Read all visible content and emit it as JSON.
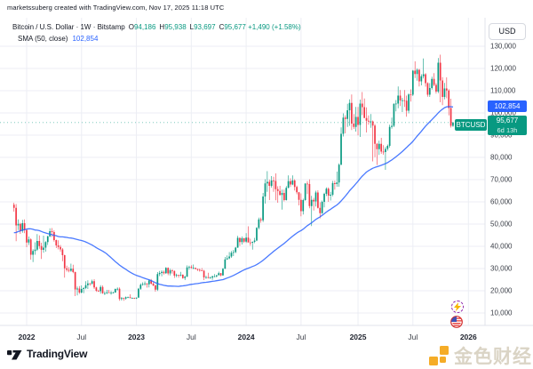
{
  "attribution": "marketssuberg created with TradingView.com, Nov 17, 2025 11:18 UTC",
  "legend": {
    "symbol_line": "Bitcoin / U.S. Dollar · 1W · Bitstamp",
    "o_label": "O",
    "o": "94,186",
    "h_label": "H",
    "h": "95,938",
    "l_label": "L",
    "l": "93,697",
    "c_label": "C",
    "c": "95,677",
    "change": "+1,490 (+1.58%)",
    "sma_label": "SMA (50, close)",
    "sma_value": "102,854"
  },
  "badges": {
    "currency": "USD",
    "sma": "102,854",
    "price": "95,677",
    "countdown": "6d 13h",
    "symbol": "BTCUSD"
  },
  "footer": {
    "brand": "TradingView",
    "watermark_text": "金色财经"
  },
  "colors": {
    "up": "#089981",
    "down": "#F23645",
    "sma_line": "#2962FF",
    "grid": "#eceef4",
    "axis_border": "#e0e3eb",
    "axis_text": "#3a3e47",
    "year_text": "#1e222d",
    "price_line": "#089981",
    "watermark_orange": "#f5a81c"
  },
  "chart_data": {
    "type": "candlestick",
    "symbol": "BTCUSD",
    "exchange": "Bitstamp",
    "interval": "1W",
    "units": "USD thousands",
    "last_price": 95.677,
    "change": 1.49,
    "change_pct": 1.58,
    "sma_period": 50,
    "sma_last": 102.854,
    "ylim": [
      5,
      135
    ],
    "price_ticks": [
      {
        "label": "130,000",
        "value": 130
      },
      {
        "label": "120,000",
        "value": 120
      },
      {
        "label": "110,000",
        "value": 110
      },
      {
        "label": "100,000",
        "value": 100
      },
      {
        "label": "90,000",
        "value": 90
      },
      {
        "label": "80,000",
        "value": 80
      },
      {
        "label": "70,000",
        "value": 70
      },
      {
        "label": "60,000",
        "value": 60
      },
      {
        "label": "50,000",
        "value": 50
      },
      {
        "label": "40,000",
        "value": 40
      },
      {
        "label": "30,000",
        "value": 30
      },
      {
        "label": "20,000",
        "value": 20
      },
      {
        "label": "10,000",
        "value": 10
      }
    ],
    "time_ticks": [
      {
        "label": "2022",
        "week": 6,
        "year": true
      },
      {
        "label": "Jul",
        "week": 32,
        "year": false
      },
      {
        "label": "2023",
        "week": 58,
        "year": true
      },
      {
        "label": "Jul",
        "week": 84,
        "year": false
      },
      {
        "label": "2024",
        "week": 110,
        "year": true
      },
      {
        "label": "Jul",
        "week": 136,
        "year": false
      },
      {
        "label": "2025",
        "week": 163,
        "year": true
      },
      {
        "label": "Jul",
        "week": 189,
        "year": false
      },
      {
        "label": "2026",
        "week": 215.3,
        "year": true
      }
    ],
    "sma_seed_closes": [
      26.9,
      33.0,
      32.0,
      35.9,
      32.1,
      34.3,
      38.9,
      47.2,
      55.9,
      45.2,
      50.9,
      57.1,
      58.1,
      55.8,
      58.7,
      59.0,
      60.0,
      56.2,
      49.1,
      58.9,
      46.7,
      34.7,
      35.7,
      35.5,
      39.0,
      35.5,
      35.6,
      34.7,
      33.5,
      31.5,
      30.8,
      34.3,
      39.9,
      45.6,
      47.1,
      49.0,
      48.9,
      51.8,
      46.1,
      48.3,
      43.2,
      47.7,
      54.7,
      61.3,
      60.9,
      61.5,
      65.5,
      58.7
    ],
    "candles": [
      [
        58.7,
        59.6,
        55.6,
        57.3
      ],
      [
        57.3,
        59.0,
        42.3,
        49.4
      ],
      [
        49.4,
        52.1,
        47.3,
        50.1
      ],
      [
        50.1,
        50.6,
        45.6,
        46.9
      ],
      [
        46.9,
        51.9,
        46.1,
        50.4
      ],
      [
        50.4,
        52.1,
        45.9,
        47.3
      ],
      [
        47.3,
        47.8,
        39.6,
        41.7
      ],
      [
        41.7,
        44.4,
        40.6,
        43.1
      ],
      [
        43.1,
        43.6,
        34.0,
        36.2
      ],
      [
        36.2,
        38.7,
        32.9,
        37.9
      ],
      [
        37.9,
        41.8,
        36.2,
        38.5
      ],
      [
        38.5,
        45.5,
        37.9,
        42.4
      ],
      [
        42.4,
        44.9,
        38.9,
        40.1
      ],
      [
        40.1,
        41.6,
        34.3,
        38.4
      ],
      [
        38.4,
        44.8,
        37.1,
        39.4
      ],
      [
        39.4,
        42.3,
        37.6,
        41.9
      ],
      [
        41.9,
        44.7,
        40.6,
        44.5
      ],
      [
        44.5,
        48.1,
        44.1,
        46.8
      ],
      [
        46.8,
        48.2,
        44.2,
        46.4
      ],
      [
        46.4,
        47.2,
        42.1,
        42.8
      ],
      [
        42.8,
        43.0,
        39.2,
        40.4
      ],
      [
        40.4,
        42.7,
        38.6,
        39.7
      ],
      [
        39.7,
        40.6,
        37.6,
        38.6
      ],
      [
        38.6,
        39.2,
        33.3,
        36.0
      ],
      [
        36.0,
        36.2,
        25.9,
        30.1
      ],
      [
        30.1,
        31.3,
        28.6,
        29.4
      ],
      [
        29.4,
        30.6,
        28.3,
        29.0
      ],
      [
        29.0,
        32.2,
        28.5,
        29.9
      ],
      [
        29.9,
        31.7,
        27.9,
        28.4
      ],
      [
        28.4,
        28.6,
        17.6,
        20.6
      ],
      [
        20.6,
        21.9,
        17.9,
        21.0
      ],
      [
        21.0,
        22.1,
        18.6,
        19.2
      ],
      [
        19.2,
        22.4,
        18.8,
        20.8
      ],
      [
        20.8,
        21.6,
        18.9,
        21.2
      ],
      [
        21.2,
        24.3,
        20.7,
        22.5
      ],
      [
        22.5,
        24.7,
        20.8,
        23.3
      ],
      [
        23.3,
        23.5,
        22.3,
        23.2
      ],
      [
        23.2,
        25.0,
        22.7,
        24.3
      ],
      [
        24.3,
        25.2,
        20.8,
        21.5
      ],
      [
        21.5,
        21.8,
        19.5,
        20.0
      ],
      [
        20.0,
        20.5,
        19.5,
        19.8
      ],
      [
        19.8,
        22.5,
        18.7,
        21.7
      ],
      [
        21.7,
        22.4,
        18.6,
        18.9
      ],
      [
        18.9,
        19.7,
        18.1,
        18.9
      ],
      [
        18.9,
        20.4,
        18.5,
        19.3
      ],
      [
        19.3,
        20.4,
        19.0,
        19.1
      ],
      [
        19.1,
        19.9,
        18.2,
        19.2
      ],
      [
        19.2,
        19.6,
        18.9,
        19.2
      ],
      [
        19.2,
        21.0,
        19.1,
        20.8
      ],
      [
        20.8,
        21.5,
        20.1,
        20.9
      ],
      [
        20.9,
        21.5,
        15.5,
        16.3
      ],
      [
        16.3,
        17.2,
        15.6,
        16.7
      ],
      [
        16.7,
        16.9,
        15.5,
        16.5
      ],
      [
        16.5,
        17.4,
        16.0,
        17.1
      ],
      [
        17.1,
        17.4,
        16.7,
        17.1
      ],
      [
        17.1,
        18.4,
        16.5,
        16.8
      ],
      [
        16.8,
        17.0,
        16.4,
        16.8
      ],
      [
        16.8,
        16.9,
        16.3,
        16.5
      ],
      [
        16.5,
        17.0,
        16.3,
        16.9
      ],
      [
        16.9,
        21.3,
        16.9,
        20.9
      ],
      [
        20.9,
        23.3,
        20.4,
        22.7
      ],
      [
        22.7,
        23.8,
        22.3,
        23.0
      ],
      [
        23.0,
        24.2,
        22.3,
        23.3
      ],
      [
        23.3,
        23.4,
        21.4,
        22.9
      ],
      [
        22.9,
        25.0,
        21.5,
        24.6
      ],
      [
        24.6,
        25.3,
        22.8,
        23.2
      ],
      [
        23.2,
        23.9,
        22.0,
        22.4
      ],
      [
        22.4,
        22.7,
        19.6,
        20.5
      ],
      [
        20.5,
        28.4,
        19.9,
        27.5
      ],
      [
        27.5,
        28.9,
        26.6,
        28.0
      ],
      [
        28.0,
        29.2,
        26.5,
        28.5
      ],
      [
        28.5,
        29.1,
        27.3,
        27.9
      ],
      [
        27.9,
        30.6,
        27.6,
        30.3
      ],
      [
        30.3,
        30.5,
        27.0,
        27.8
      ],
      [
        27.8,
        29.9,
        26.9,
        29.2
      ],
      [
        29.2,
        29.7,
        27.7,
        28.9
      ],
      [
        28.9,
        29.1,
        25.8,
        26.8
      ],
      [
        26.8,
        27.7,
        26.1,
        27.1
      ],
      [
        27.1,
        27.2,
        25.9,
        26.9
      ],
      [
        26.9,
        28.5,
        26.5,
        27.2
      ],
      [
        27.2,
        27.4,
        25.4,
        25.7
      ],
      [
        25.7,
        26.8,
        24.8,
        26.3
      ],
      [
        26.3,
        31.4,
        26.2,
        30.5
      ],
      [
        30.5,
        31.3,
        29.5,
        30.7
      ],
      [
        30.7,
        31.5,
        29.9,
        30.3
      ],
      [
        30.3,
        31.8,
        29.7,
        30.3
      ],
      [
        30.3,
        30.4,
        29.6,
        29.8
      ],
      [
        29.8,
        29.9,
        28.9,
        29.4
      ],
      [
        29.4,
        30.0,
        28.6,
        29.2
      ],
      [
        29.2,
        30.2,
        28.9,
        29.0
      ],
      [
        29.0,
        29.4,
        24.8,
        26.0
      ],
      [
        26.0,
        26.8,
        25.4,
        26.1
      ],
      [
        26.1,
        28.1,
        25.5,
        25.9
      ],
      [
        25.9,
        26.4,
        25.4,
        25.9
      ],
      [
        25.9,
        26.8,
        24.9,
        26.5
      ],
      [
        26.5,
        27.5,
        26.1,
        26.5
      ],
      [
        26.5,
        27.1,
        26.0,
        27.0
      ],
      [
        27.0,
        28.6,
        26.9,
        27.9
      ],
      [
        27.9,
        28.0,
        26.5,
        26.9
      ],
      [
        26.9,
        30.2,
        26.8,
        29.9
      ],
      [
        29.9,
        35.2,
        29.8,
        34.1
      ],
      [
        34.1,
        35.9,
        33.9,
        34.6
      ],
      [
        34.6,
        37.4,
        34.2,
        35.4
      ],
      [
        35.4,
        37.9,
        34.8,
        37.1
      ],
      [
        37.1,
        38.4,
        35.6,
        37.4
      ],
      [
        37.4,
        39.7,
        36.9,
        39.4
      ],
      [
        39.4,
        44.7,
        39.3,
        43.8
      ],
      [
        43.8,
        43.9,
        40.2,
        41.9
      ],
      [
        41.9,
        44.4,
        40.8,
        43.6
      ],
      [
        43.6,
        43.8,
        41.5,
        42.1
      ],
      [
        42.1,
        45.9,
        41.5,
        43.9
      ],
      [
        43.9,
        49.0,
        41.9,
        41.7
      ],
      [
        41.7,
        43.4,
        40.3,
        41.6
      ],
      [
        41.6,
        42.2,
        38.5,
        42.0
      ],
      [
        42.0,
        43.8,
        41.4,
        42.6
      ],
      [
        42.6,
        48.6,
        42.3,
        48.3
      ],
      [
        48.3,
        52.9,
        47.6,
        52.1
      ],
      [
        52.1,
        52.9,
        50.6,
        51.7
      ],
      [
        51.7,
        64.0,
        50.9,
        62.4
      ],
      [
        62.4,
        70.2,
        59.2,
        68.3
      ],
      [
        68.3,
        73.8,
        64.5,
        69.0
      ],
      [
        69.0,
        70.0,
        60.8,
        67.2
      ],
      [
        67.2,
        71.6,
        66.4,
        69.6
      ],
      [
        69.6,
        71.3,
        64.5,
        69.4
      ],
      [
        69.4,
        72.8,
        60.7,
        65.7
      ],
      [
        65.7,
        67.0,
        59.6,
        64.9
      ],
      [
        64.9,
        67.2,
        62.8,
        63.1
      ],
      [
        63.1,
        65.5,
        56.5,
        64.0
      ],
      [
        64.0,
        65.5,
        60.2,
        60.8
      ],
      [
        60.8,
        67.1,
        60.6,
        66.3
      ],
      [
        66.3,
        71.9,
        66.1,
        69.3
      ],
      [
        69.3,
        70.6,
        66.7,
        67.8
      ],
      [
        67.8,
        71.9,
        67.5,
        69.6
      ],
      [
        69.6,
        70.2,
        65.1,
        66.7
      ],
      [
        66.7,
        67.3,
        63.4,
        64.3
      ],
      [
        64.3,
        64.5,
        58.4,
        60.9
      ],
      [
        60.9,
        63.8,
        53.5,
        55.8
      ],
      [
        55.8,
        61.4,
        54.3,
        60.8
      ],
      [
        60.8,
        68.4,
        60.5,
        68.2
      ],
      [
        68.2,
        69.3,
        63.5,
        68.0
      ],
      [
        68.0,
        70.1,
        57.1,
        58.1
      ],
      [
        58.1,
        62.7,
        49.1,
        60.9
      ],
      [
        60.9,
        61.8,
        56.1,
        60.2
      ],
      [
        60.2,
        65.0,
        57.9,
        64.2
      ],
      [
        64.2,
        65.2,
        57.0,
        57.3
      ],
      [
        57.3,
        59.8,
        52.6,
        54.9
      ],
      [
        54.9,
        60.6,
        54.6,
        60.0
      ],
      [
        60.0,
        64.1,
        57.5,
        63.6
      ],
      [
        63.6,
        66.5,
        62.6,
        65.9
      ],
      [
        65.9,
        66.5,
        60.0,
        62.8
      ],
      [
        62.8,
        64.5,
        60.6,
        63.2
      ],
      [
        63.2,
        69.4,
        62.5,
        68.4
      ],
      [
        68.4,
        69.5,
        65.5,
        68.0
      ],
      [
        68.0,
        73.6,
        66.8,
        68.7
      ],
      [
        68.7,
        77.3,
        66.8,
        76.7
      ],
      [
        76.7,
        93.5,
        76.5,
        90.6
      ],
      [
        90.6,
        99.8,
        89.4,
        97.9
      ],
      [
        97.9,
        98.9,
        90.8,
        97.3
      ],
      [
        97.3,
        104.1,
        93.7,
        101.2
      ],
      [
        101.2,
        106.1,
        94.2,
        104.5
      ],
      [
        104.5,
        108.3,
        92.3,
        95.2
      ],
      [
        95.2,
        99.5,
        92.8,
        93.7
      ],
      [
        93.7,
        102.7,
        91.6,
        98.2
      ],
      [
        98.2,
        102.7,
        89.9,
        94.6
      ],
      [
        94.6,
        106.0,
        89.2,
        104.2
      ],
      [
        104.2,
        109.4,
        99.0,
        102.6
      ],
      [
        102.6,
        106.5,
        97.8,
        97.7
      ],
      [
        97.7,
        102.5,
        91.2,
        96.5
      ],
      [
        96.5,
        98.9,
        94.7,
        96.1
      ],
      [
        96.1,
        99.5,
        93.3,
        96.2
      ],
      [
        96.2,
        96.6,
        78.2,
        94.3
      ],
      [
        94.3,
        95.0,
        80.1,
        86.1
      ],
      [
        86.1,
        86.5,
        76.6,
        83.7
      ],
      [
        83.7,
        87.5,
        81.1,
        86.1
      ],
      [
        86.1,
        88.8,
        81.6,
        82.6
      ],
      [
        82.6,
        85.5,
        81.2,
        82.4
      ],
      [
        82.4,
        84.7,
        74.4,
        83.8
      ],
      [
        83.8,
        85.8,
        83.0,
        85.2
      ],
      [
        85.2,
        94.7,
        84.4,
        93.7
      ],
      [
        93.7,
        97.9,
        92.9,
        94.2
      ],
      [
        94.2,
        104.3,
        93.6,
        104.1
      ],
      [
        104.1,
        105.8,
        100.7,
        104.2
      ],
      [
        104.2,
        111.9,
        102.1,
        107.8
      ],
      [
        107.8,
        110.3,
        103.1,
        105.6
      ],
      [
        105.6,
        106.8,
        100.4,
        105.7
      ],
      [
        105.7,
        110.3,
        102.7,
        105.5
      ],
      [
        105.5,
        107.8,
        98.3,
        101.0
      ],
      [
        101.0,
        108.8,
        99.8,
        108.3
      ],
      [
        108.3,
        110.6,
        105.1,
        108.2
      ],
      [
        108.2,
        119.3,
        107.6,
        119.0
      ],
      [
        119.0,
        123.2,
        115.7,
        117.5
      ],
      [
        117.5,
        120.0,
        114.5,
        119.4
      ],
      [
        119.4,
        119.8,
        111.9,
        114.2
      ],
      [
        114.2,
        117.4,
        112.4,
        116.5
      ],
      [
        116.5,
        124.5,
        115.5,
        117.4
      ],
      [
        117.4,
        117.9,
        111.8,
        113.4
      ],
      [
        113.4,
        113.8,
        107.3,
        108.2
      ],
      [
        108.2,
        113.4,
        107.2,
        111.2
      ],
      [
        111.2,
        116.3,
        110.5,
        115.3
      ],
      [
        115.3,
        117.9,
        112.0,
        112.6
      ],
      [
        112.6,
        113.4,
        108.7,
        109.6
      ],
      [
        109.6,
        124.7,
        108.9,
        122.6
      ],
      [
        122.6,
        126.2,
        104.8,
        114.6
      ],
      [
        114.6,
        116.1,
        103.5,
        107.2
      ],
      [
        107.2,
        113.5,
        106.1,
        111.0
      ],
      [
        111.0,
        116.0,
        106.6,
        110.1
      ],
      [
        110.1,
        110.7,
        98.9,
        102.2
      ],
      [
        102.2,
        106.4,
        93.4,
        94.2
      ],
      [
        94.186,
        95.938,
        93.697,
        95.677
      ]
    ]
  }
}
